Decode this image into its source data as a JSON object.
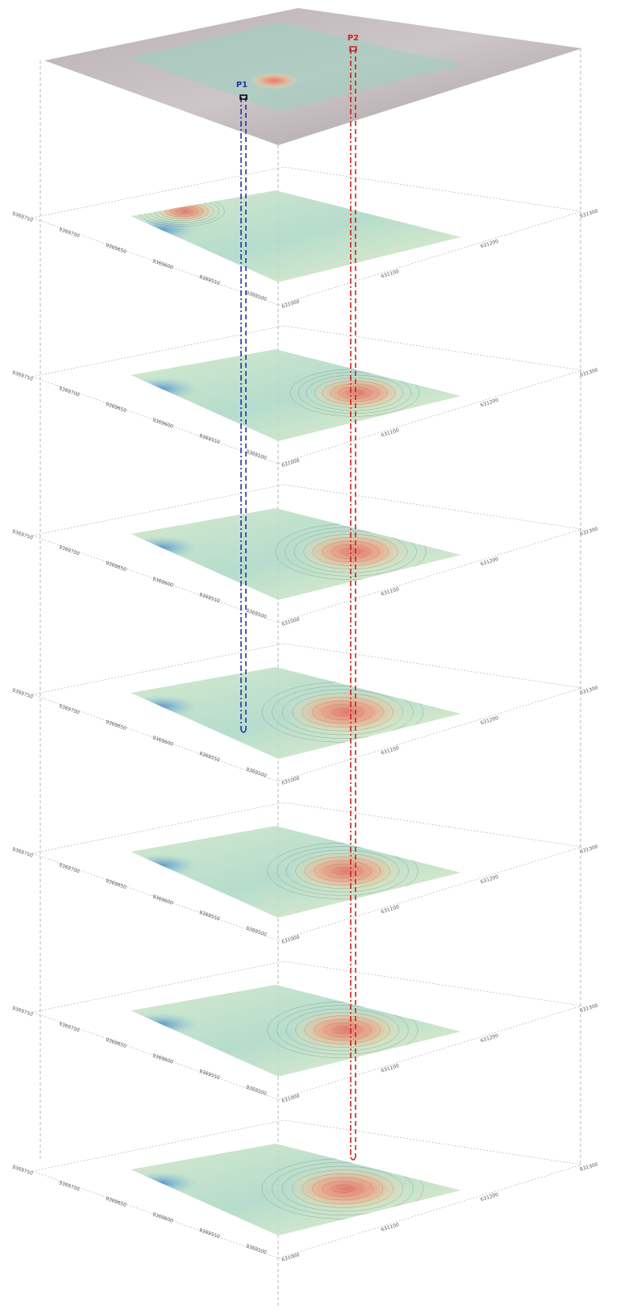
{
  "markers": [
    {
      "label": "P1"
    },
    {
      "label": "P2"
    }
  ],
  "axes": {
    "northing": [
      "9369750",
      "9369700",
      "9369650",
      "9369600",
      "9369550",
      "9369500"
    ],
    "easting": [
      "631000",
      "631100",
      "631200",
      "631300"
    ]
  }
}
